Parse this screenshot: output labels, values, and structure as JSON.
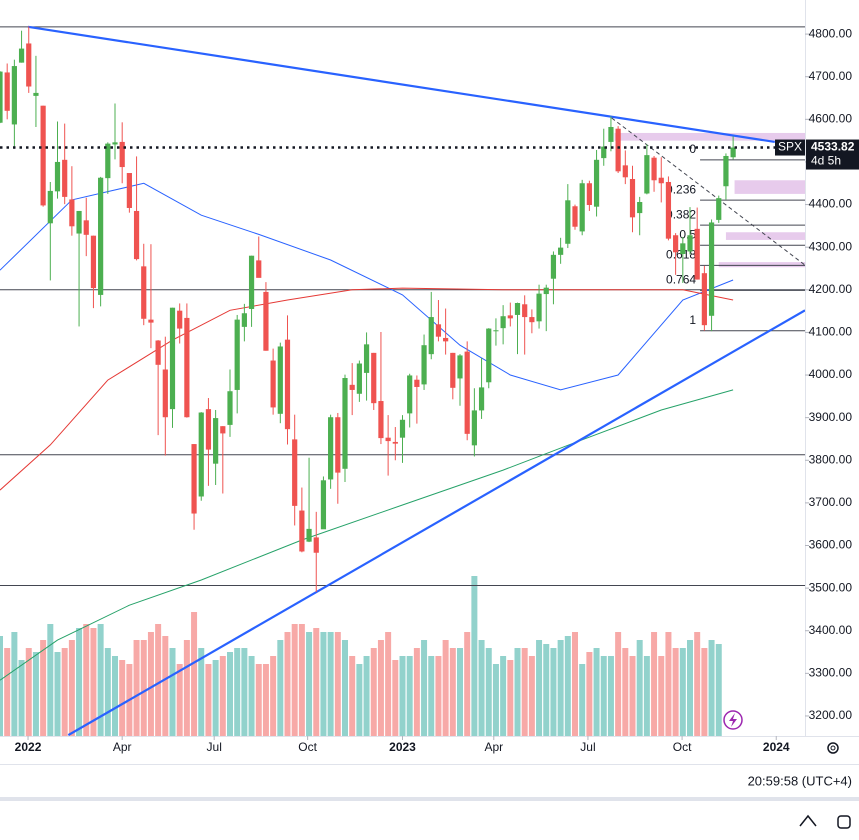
{
  "chart_data": {
    "type": "candlestick",
    "symbol": "SPX",
    "last_price": 4533.82,
    "countdown": "4d 5h",
    "clock": "20:59:58 (UTC+4)",
    "up_color": "#4caf50",
    "down_color": "#ef5350",
    "volume_up_color": "#92d2cc",
    "volume_down_color": "#f7a9a7",
    "xlim": [
      0,
      112
    ],
    "ylim": [
      3153,
      4880
    ],
    "volume_ylim": [
      0,
      92
    ],
    "xticks": [
      {
        "value": 3.9,
        "label": "2022"
      },
      {
        "value": 17,
        "label": "Apr"
      },
      {
        "value": 29.8,
        "label": "Jul"
      },
      {
        "value": 42.8,
        "label": "Oct"
      },
      {
        "value": 56,
        "label": "2023"
      },
      {
        "value": 68.7,
        "label": "Apr"
      },
      {
        "value": 81.8,
        "label": "Jul"
      },
      {
        "value": 94.9,
        "label": "Oct"
      },
      {
        "value": 108,
        "label": "2024"
      }
    ],
    "yticks": [
      {
        "value": 4800,
        "label": "4800.00"
      },
      {
        "value": 4700,
        "label": "4700.00"
      },
      {
        "value": 4600,
        "label": "4600.00"
      },
      {
        "value": 4500,
        "label": "4500.00"
      },
      {
        "value": 4400,
        "label": "4400.00"
      },
      {
        "value": 4300,
        "label": "4300.00"
      },
      {
        "value": 4200,
        "label": "4200.00"
      },
      {
        "value": 4100,
        "label": "4100.00"
      },
      {
        "value": 4000,
        "label": "4000.00"
      },
      {
        "value": 3900,
        "label": "3900.00"
      },
      {
        "value": 3800,
        "label": "3800.00"
      },
      {
        "value": 3700,
        "label": "3700.00"
      },
      {
        "value": 3600,
        "label": "3600.00"
      },
      {
        "value": 3500,
        "label": "3500.00"
      },
      {
        "value": 3400,
        "label": "3400.00"
      },
      {
        "value": 3300,
        "label": "3300.00"
      },
      {
        "value": 3200,
        "label": "3200.00"
      }
    ],
    "ohlc": [
      [
        4592,
        4713,
        4591,
        4712
      ],
      [
        4710,
        4731,
        4600,
        4620
      ],
      [
        4588,
        4740,
        4531,
        4725
      ],
      [
        4733,
        4808,
        4733,
        4766
      ],
      [
        4778,
        4818,
        4662,
        4677
      ],
      [
        4655,
        4749,
        4582,
        4662
      ],
      [
        4632,
        4632,
        4395,
        4398
      ],
      [
        4356,
        4453,
        4222,
        4432
      ],
      [
        4431,
        4595,
        4414,
        4500
      ],
      [
        4505,
        4590,
        4401,
        4418
      ],
      [
        4412,
        4490,
        4327,
        4349
      ],
      [
        4332,
        4385,
        4114,
        4385
      ],
      [
        4363,
        4416,
        4279,
        4329
      ],
      [
        4327,
        4327,
        4157,
        4204
      ],
      [
        4188,
        4465,
        4161,
        4463
      ],
      [
        4462,
        4546,
        4425,
        4543
      ],
      [
        4541,
        4637,
        4506,
        4546
      ],
      [
        4547,
        4593,
        4450,
        4488
      ],
      [
        4474,
        4471,
        4381,
        4392
      ],
      [
        4385,
        4513,
        4269,
        4272
      ],
      [
        4255,
        4308,
        4117,
        4132
      ],
      [
        4130,
        4307,
        4063,
        4123
      ],
      [
        4081,
        4082,
        3859,
        4024
      ],
      [
        4013,
        4090,
        3811,
        3901
      ],
      [
        3920,
        4158,
        3876,
        4158
      ],
      [
        4151,
        4168,
        4074,
        4109
      ],
      [
        4134,
        4168,
        3900,
        3901
      ],
      [
        3838,
        3838,
        3637,
        3675
      ],
      [
        3715,
        3913,
        3705,
        3912
      ],
      [
        3920,
        3946,
        3740,
        3825
      ],
      [
        3792,
        3918,
        3742,
        3899
      ],
      [
        3880,
        3880,
        3722,
        3863
      ],
      [
        3883,
        4013,
        3855,
        3962
      ],
      [
        3965,
        4141,
        3910,
        4130
      ],
      [
        4113,
        4167,
        4079,
        4145
      ],
      [
        4155,
        4280,
        4113,
        4280
      ],
      [
        4269,
        4325,
        4230,
        4228
      ],
      [
        4195,
        4218,
        4057,
        4057
      ],
      [
        4034,
        4062,
        3907,
        3924
      ],
      [
        3909,
        4076,
        3887,
        4067
      ],
      [
        4083,
        4140,
        3837,
        3873
      ],
      [
        3849,
        3907,
        3647,
        3693
      ],
      [
        3682,
        3736,
        3584,
        3586
      ],
      [
        3609,
        3806,
        3608,
        3639
      ],
      [
        3619,
        3679,
        3491,
        3583
      ],
      [
        3638,
        3762,
        3640,
        3753
      ],
      [
        3755,
        3907,
        3733,
        3901
      ],
      [
        3901,
        3911,
        3698,
        3771
      ],
      [
        3780,
        4001,
        3749,
        3993
      ],
      [
        3977,
        4028,
        3906,
        3965
      ],
      [
        3956,
        4034,
        3937,
        4027
      ],
      [
        4005,
        4100,
        3940,
        4072
      ],
      [
        4052,
        4052,
        3918,
        3934
      ],
      [
        3939,
        4101,
        3838,
        3852
      ],
      [
        3853,
        3906,
        3764,
        3845
      ],
      [
        3843,
        3878,
        3800,
        3839
      ],
      [
        3853,
        3906,
        3794,
        3895
      ],
      [
        3910,
        4003,
        3877,
        3999
      ],
      [
        3989,
        3999,
        3886,
        3972
      ],
      [
        3978,
        4095,
        3965,
        4070
      ],
      [
        4049,
        4195,
        4037,
        4136
      ],
      [
        4119,
        4176,
        4079,
        4090
      ],
      [
        4087,
        4156,
        4048,
        4079
      ],
      [
        4052,
        4052,
        3943,
        3970
      ],
      [
        3992,
        4049,
        3928,
        4046
      ],
      [
        4055,
        4079,
        3847,
        3862
      ],
      [
        3835,
        3969,
        3809,
        3917
      ],
      [
        3917,
        4040,
        3897,
        3971
      ],
      [
        3983,
        4110,
        3969,
        4109
      ],
      [
        4103,
        4133,
        4069,
        4105
      ],
      [
        4110,
        4164,
        4072,
        4138
      ],
      [
        4140,
        4170,
        4114,
        4133
      ],
      [
        4141,
        4170,
        4049,
        4169
      ],
      [
        4166,
        4187,
        4048,
        4136
      ],
      [
        4136,
        4154,
        4098,
        4124
      ],
      [
        4126,
        4212,
        4109,
        4191
      ],
      [
        4190,
        4212,
        4103,
        4205
      ],
      [
        4226,
        4290,
        4166,
        4282
      ],
      [
        4282,
        4322,
        4261,
        4299
      ],
      [
        4308,
        4448,
        4298,
        4410
      ],
      [
        4396,
        4400,
        4341,
        4348
      ],
      [
        4337,
        4458,
        4328,
        4450
      ],
      [
        4450,
        4456,
        4385,
        4399
      ],
      [
        4395,
        4528,
        4372,
        4505
      ],
      [
        4509,
        4578,
        4491,
        4536
      ],
      [
        4547,
        4607,
        4525,
        4582
      ],
      [
        4578,
        4584,
        4474,
        4478
      ],
      [
        4492,
        4527,
        4448,
        4464
      ],
      [
        4460,
        4491,
        4335,
        4370
      ],
      [
        4380,
        4418,
        4328,
        4406
      ],
      [
        4426,
        4541,
        4424,
        4516
      ],
      [
        4510,
        4514,
        4430,
        4457
      ],
      [
        4463,
        4511,
        4405,
        4450
      ],
      [
        4453,
        4466,
        4316,
        4320
      ],
      [
        4328,
        4333,
        4235,
        4288
      ],
      [
        4284,
        4324,
        4216,
        4309
      ],
      [
        4290,
        4394,
        4283,
        4328
      ],
      [
        4343,
        4393,
        4224,
        4224
      ],
      [
        4239,
        4256,
        4104,
        4117
      ],
      [
        4139,
        4365,
        4103,
        4358
      ],
      [
        4364,
        4421,
        4357,
        4415
      ],
      [
        4443,
        4520,
        4412,
        4514
      ],
      [
        4511,
        4560,
        4506,
        4533.82
      ]
    ],
    "volume": [
      12.5,
      11,
      13,
      9.5,
      11,
      10.5,
      12,
      14,
      10.5,
      11,
      12,
      13.5,
      14,
      13.5,
      14,
      11,
      10,
      9.5,
      9,
      12,
      12,
      13,
      14,
      12.5,
      11,
      9,
      12,
      15.5,
      11,
      9,
      9.5,
      10,
      10.5,
      11,
      11,
      10,
      9,
      9,
      10,
      12,
      13,
      14,
      14,
      13,
      13.5,
      13,
      13,
      13,
      12,
      10,
      9,
      10,
      11,
      12,
      13,
      9.5,
      10,
      10,
      11,
      12,
      10,
      10,
      12,
      11,
      11,
      13,
      20,
      12,
      11,
      9,
      10,
      9.5,
      11,
      11,
      10,
      12,
      11.5,
      11,
      12,
      12.5,
      13,
      9,
      10.5,
      11,
      10,
      10,
      13,
      11,
      10,
      12,
      10,
      13,
      10,
      13,
      11,
      11,
      12,
      13,
      11,
      12,
      11.5
    ],
    "ma_lines": [
      {
        "color": "#2962ff",
        "x": [
          0,
          10,
          20,
          28,
          36,
          46,
          56,
          64,
          71,
          78,
          86,
          95,
          102
        ],
        "values": [
          4246,
          4411,
          4450,
          4375,
          4330,
          4270,
          4188,
          4070,
          4000,
          3965,
          4000,
          4176,
          4223
        ]
      },
      {
        "color": "#e53935",
        "x": [
          0,
          7,
          15,
          24,
          32,
          40,
          49,
          56,
          70,
          83,
          95,
          102
        ],
        "values": [
          3730,
          3836,
          3988,
          4082,
          4152,
          4176,
          4200,
          4204,
          4200,
          4200,
          4200,
          4176
        ]
      },
      {
        "color": "#26a269",
        "x": [
          0,
          8,
          18,
          28,
          42,
          56,
          70,
          81,
          92,
          102
        ],
        "values": [
          3284,
          3378,
          3460,
          3519,
          3613,
          3695,
          3777,
          3848,
          3918,
          3965
        ]
      }
    ],
    "trend_lines": [
      {
        "color": "#2962ff",
        "x": [
          3.9,
          107.8
        ],
        "values": [
          4817,
          4547
        ]
      },
      {
        "color": "#2962ff",
        "x": [
          9.5,
          112
        ],
        "values": [
          3155,
          4152
        ]
      }
    ],
    "dashed_line": {
      "x": [
        85.1,
        112
      ],
      "values": [
        4603,
        4258
      ]
    },
    "levels": [
      4817,
      4200,
      3813,
      3506
    ],
    "zones": [
      {
        "x": 85.5,
        "top": 4568,
        "bottom": 4550
      },
      {
        "x": 102.2,
        "top": 4457,
        "bottom": 4425
      },
      {
        "x": 101,
        "top": 4335,
        "bottom": 4317
      },
      {
        "x": 100,
        "top": 4265,
        "bottom": 4253
      }
    ],
    "fib": {
      "x": 97.4,
      "high": 4505,
      "low": 4104,
      "levels": [
        0,
        0.236,
        0.382,
        0.5,
        0.618,
        0.764,
        1
      ]
    }
  }
}
